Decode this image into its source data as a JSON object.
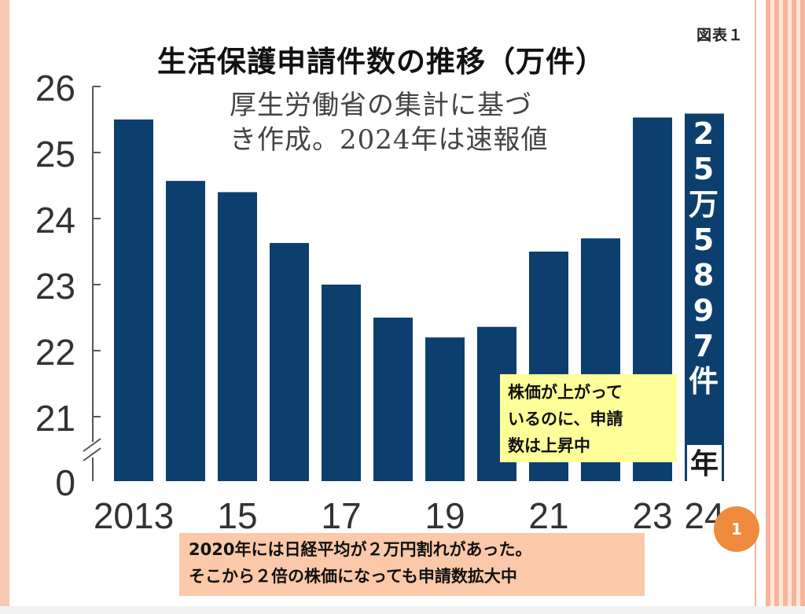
{
  "figure_label": "図表１",
  "chart_data": {
    "type": "bar",
    "title": "生活保護申請件数の推移（万件）",
    "subtitle_lines": [
      "厚生労働省の集計に基づ",
      "き作成。2024年は速報値"
    ],
    "unit": "万件",
    "categories": [
      "2013",
      "2014",
      "2015",
      "2016",
      "2017",
      "2018",
      "2019",
      "2020",
      "2021",
      "2022",
      "2023",
      "2024"
    ],
    "values": [
      25.5,
      24.57,
      24.4,
      23.63,
      23.0,
      22.5,
      22.2,
      22.36,
      23.5,
      23.7,
      25.53,
      25.5897
    ],
    "x_tick_labels": [
      "2013",
      "",
      "15",
      "",
      "17",
      "",
      "19",
      "",
      "21",
      "",
      "23",
      "24"
    ],
    "y_tick_labels": [
      "0",
      "21",
      "22",
      "23",
      "24",
      "25",
      "26"
    ],
    "ylim": [
      21,
      26
    ],
    "axis_break": true,
    "bar_color": "#0d3f6e",
    "highlight": {
      "category": "2024",
      "label_glyphs": [
        "2",
        "5",
        "万",
        "5",
        "8",
        "9",
        "7",
        "件"
      ],
      "suffix": "年"
    }
  },
  "notes": {
    "yellow": [
      "株価が上がって",
      "いるのに、申請",
      "数は上昇中"
    ],
    "orange": [
      "2020年には日経平均が２万円割れがあった。",
      "そこから２倍の株価になっても申請数拡大中"
    ]
  },
  "page_badge": "1"
}
